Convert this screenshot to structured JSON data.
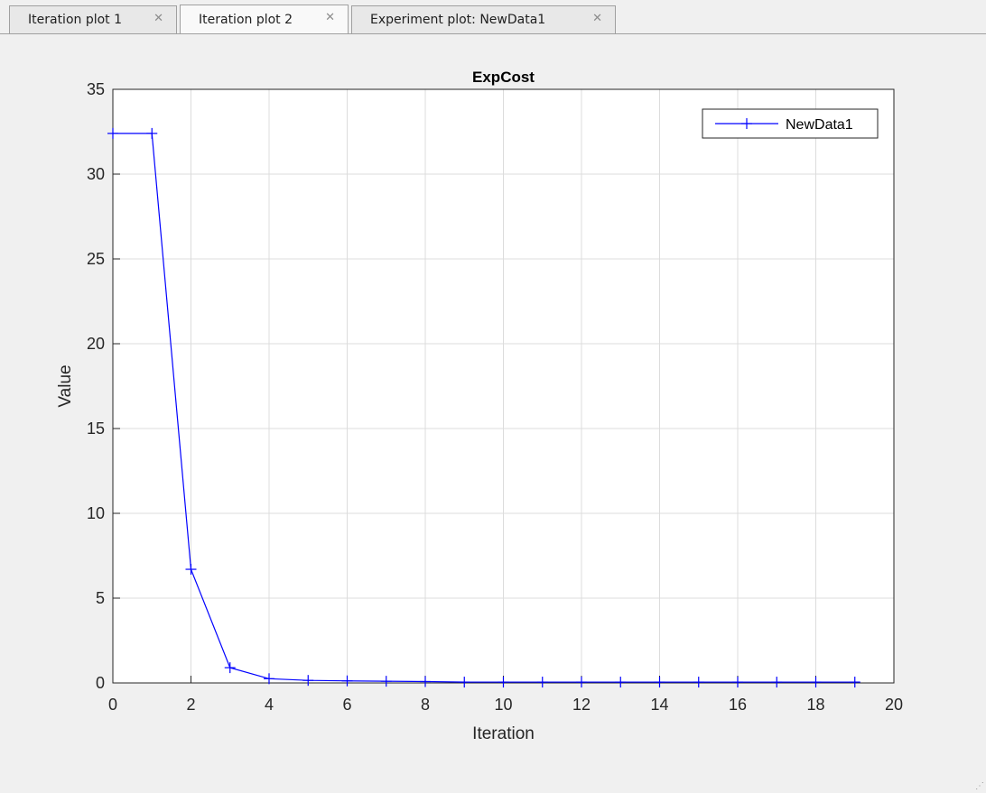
{
  "tabs": [
    {
      "label": "Iteration plot 1",
      "close_glyph": "✕",
      "active": false
    },
    {
      "label": "Iteration plot 2",
      "close_glyph": "✕",
      "active": true
    },
    {
      "label": "Experiment plot: NewData1",
      "close_glyph": "✕",
      "active": false
    }
  ],
  "colors": {
    "series": "#0000ff",
    "axes": "#262626",
    "grid": "#dcdcdc",
    "plot_bg": "#ffffff",
    "window_bg": "#f0f0f0"
  },
  "chart_data": {
    "type": "line",
    "title": "ExpCost",
    "xlabel": "Iteration",
    "ylabel": "Value",
    "xlim": [
      0,
      20
    ],
    "ylim": [
      0,
      35
    ],
    "xticks": [
      0,
      2,
      4,
      6,
      8,
      10,
      12,
      14,
      16,
      18,
      20
    ],
    "yticks": [
      0,
      5,
      10,
      15,
      20,
      25,
      30,
      35
    ],
    "grid": true,
    "legend_position": "top-right",
    "marker": "+",
    "series": [
      {
        "name": "NewData1",
        "x": [
          0,
          1,
          2,
          3,
          4,
          5,
          6,
          7,
          8,
          9,
          10,
          11,
          12,
          13,
          14,
          15,
          16,
          17,
          18,
          19
        ],
        "y": [
          32.4,
          32.4,
          6.7,
          0.9,
          0.25,
          0.15,
          0.12,
          0.1,
          0.08,
          0.05,
          0.05,
          0.05,
          0.05,
          0.05,
          0.05,
          0.05,
          0.05,
          0.05,
          0.05,
          0.05
        ]
      }
    ]
  }
}
